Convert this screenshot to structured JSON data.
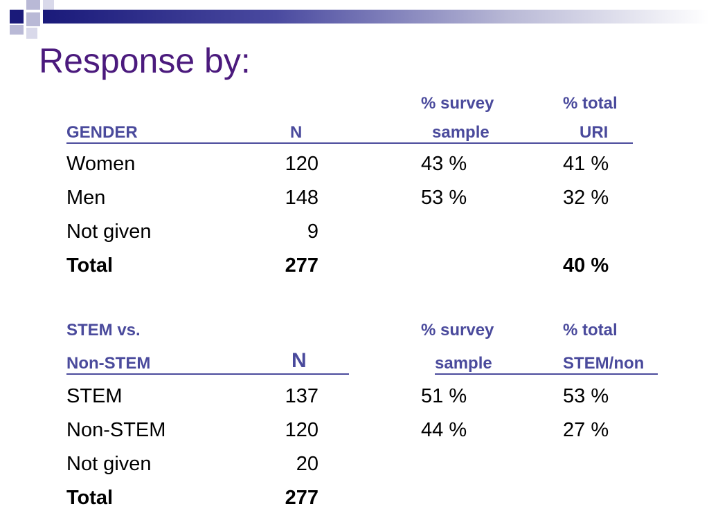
{
  "title": "Response by:",
  "gender_table": {
    "header": {
      "col1": "GENDER",
      "col2": "N",
      "col3_line1": "% survey",
      "col3_line2": "sample",
      "col4_line1": "% total",
      "col4_line2": "URI"
    },
    "rows": [
      {
        "label": "Women",
        "n": "120",
        "survey": "43 %",
        "total": "41 %"
      },
      {
        "label": "Men",
        "n": "148",
        "survey": "53 %",
        "total": "32 %"
      },
      {
        "label": "Not given",
        "n": "9",
        "survey": "",
        "total": ""
      },
      {
        "label": "Total",
        "n": "277",
        "survey": "",
        "total": "40 %"
      }
    ]
  },
  "stem_table": {
    "header": {
      "col1_line1": "STEM vs.",
      "col1_line2": "Non-STEM",
      "col2": "N",
      "col3_line1": "% survey",
      "col3_line2": "sample",
      "col4_line1": "% total",
      "col4_line2": "STEM/non"
    },
    "rows": [
      {
        "label": "STEM",
        "n": "137",
        "survey": "51 %",
        "total": "53 %"
      },
      {
        "label": "Non-STEM",
        "n": "120",
        "survey": "44 %",
        "total": "27 %"
      },
      {
        "label": "Not given",
        "n": "20",
        "survey": "",
        "total": ""
      },
      {
        "label": "Total",
        "n": "277",
        "survey": "",
        "total": ""
      }
    ]
  }
}
